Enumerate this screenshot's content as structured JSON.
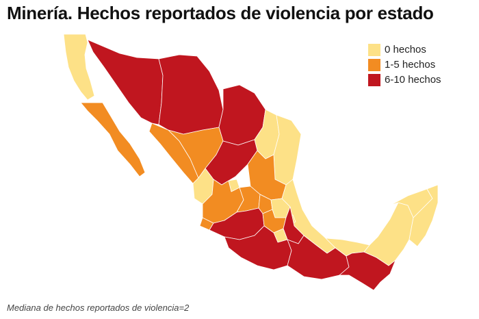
{
  "title": "Minería. Hechos reportados de violencia por estado",
  "legend": {
    "items": [
      {
        "label": "0 hechos",
        "color": "#fde187"
      },
      {
        "label": "1-5 hechos",
        "color": "#f28c22"
      },
      {
        "label": "6-10 hechos",
        "color": "#c0161f"
      }
    ]
  },
  "footnote": "Mediana de hechos reportados de violencia=2"
}
